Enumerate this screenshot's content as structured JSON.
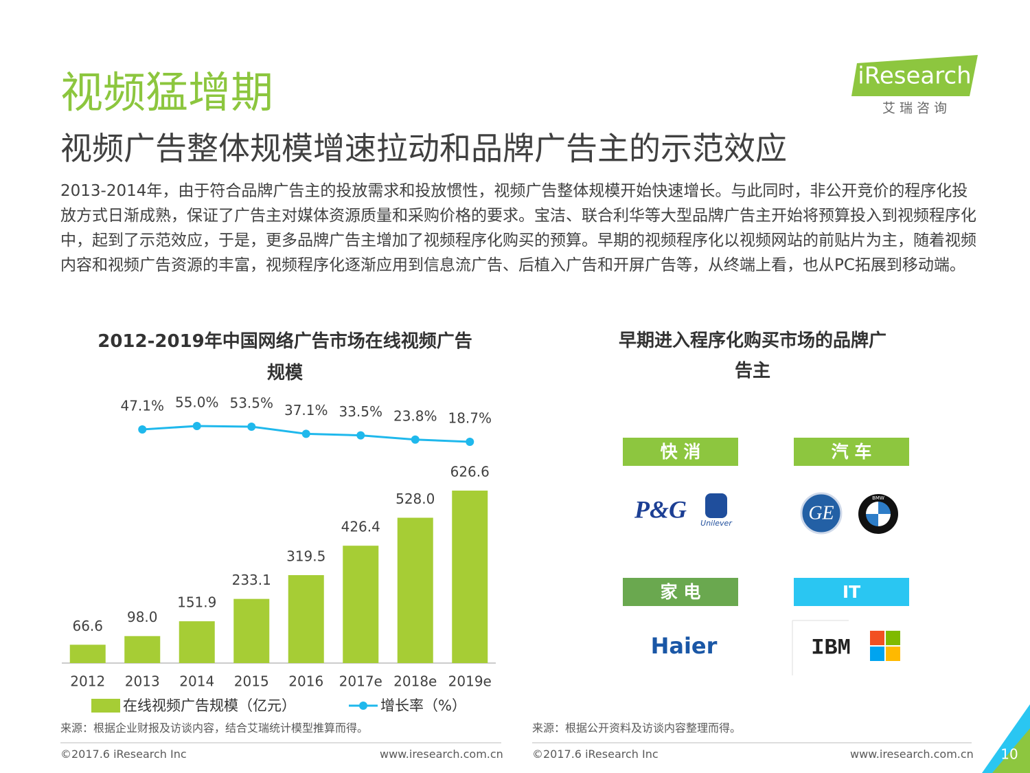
{
  "header": {
    "title": "视频猛增期",
    "subtitle": "视频广告整体规模增速拉动和品牌广告主的示范效应",
    "logo": "iResearch",
    "logo_sub": "艾 瑞 咨 询"
  },
  "body": "2013-2014年，由于符合品牌广告主的投放需求和投放惯性，视频广告整体规模开始快速增长。与此同时，非公开竞价的程序化投放方式日渐成熟，保证了广告主对媒体资源质量和采购价格的要求。宝洁、联合利华等大型品牌广告主开始将预算投入到视频程序化中，起到了示范效应，于是，更多品牌广告主增加了视频程序化购买的预算。早期的视频程序化以视频网站的前贴片为主，随着视频内容和视频广告资源的丰富，视频程序化逐渐应用到信息流广告、后植入广告和开屏广告等，从终端上看，也从PC拓展到移动端。",
  "chart_data": {
    "type": "bar",
    "title": "2012-2019年中国网络广告市场在线视频广告规模",
    "categories": [
      "2012",
      "2013",
      "2014",
      "2015",
      "2016",
      "2017e",
      "2018e",
      "2019e"
    ],
    "series": [
      {
        "name": "在线视频广告规模（亿元）",
        "color": "#a6cd35",
        "values": [
          66.6,
          98.0,
          151.9,
          233.1,
          319.5,
          426.4,
          528.0,
          626.6
        ],
        "value_labels": [
          "66.6",
          "98.0",
          "151.9",
          "233.1",
          "319.5",
          "426.4",
          "528.0",
          "626.6"
        ]
      },
      {
        "name": "增长率（%）",
        "type": "line",
        "color": "#1fb8ec",
        "values": [
          null,
          47.1,
          55.0,
          53.5,
          37.1,
          33.5,
          23.8,
          18.7
        ],
        "value_labels": [
          null,
          "47.1%",
          "55.0%",
          "53.5%",
          "37.1%",
          "33.5%",
          "23.8%",
          "18.7%"
        ]
      }
    ]
  },
  "brands": {
    "title": "早期进入程序化购买市场的品牌广告主",
    "groups": [
      {
        "label": "快 消",
        "color": "#8dc63f",
        "logos": [
          "P&G",
          "Unilever"
        ]
      },
      {
        "label": "汽 车",
        "color": "#8dc63f",
        "logos": [
          "GE",
          "BMW"
        ]
      },
      {
        "label": "家 电",
        "color": "#6aa84f",
        "logos": [
          "Haier"
        ]
      },
      {
        "label": "IT",
        "color": "#2ac6f2",
        "logos": [
          "IBM"
        ]
      }
    ]
  },
  "sources": [
    "来源：根据企业财报及访谈内容，结合艾瑞统计模型推算而得。",
    "来源：根据公开资料及访谈内容整理而得。"
  ],
  "footer": {
    "copyright": "©2017.6 iResearch Inc",
    "url": "www.iresearch.com.cn",
    "page": "10"
  }
}
